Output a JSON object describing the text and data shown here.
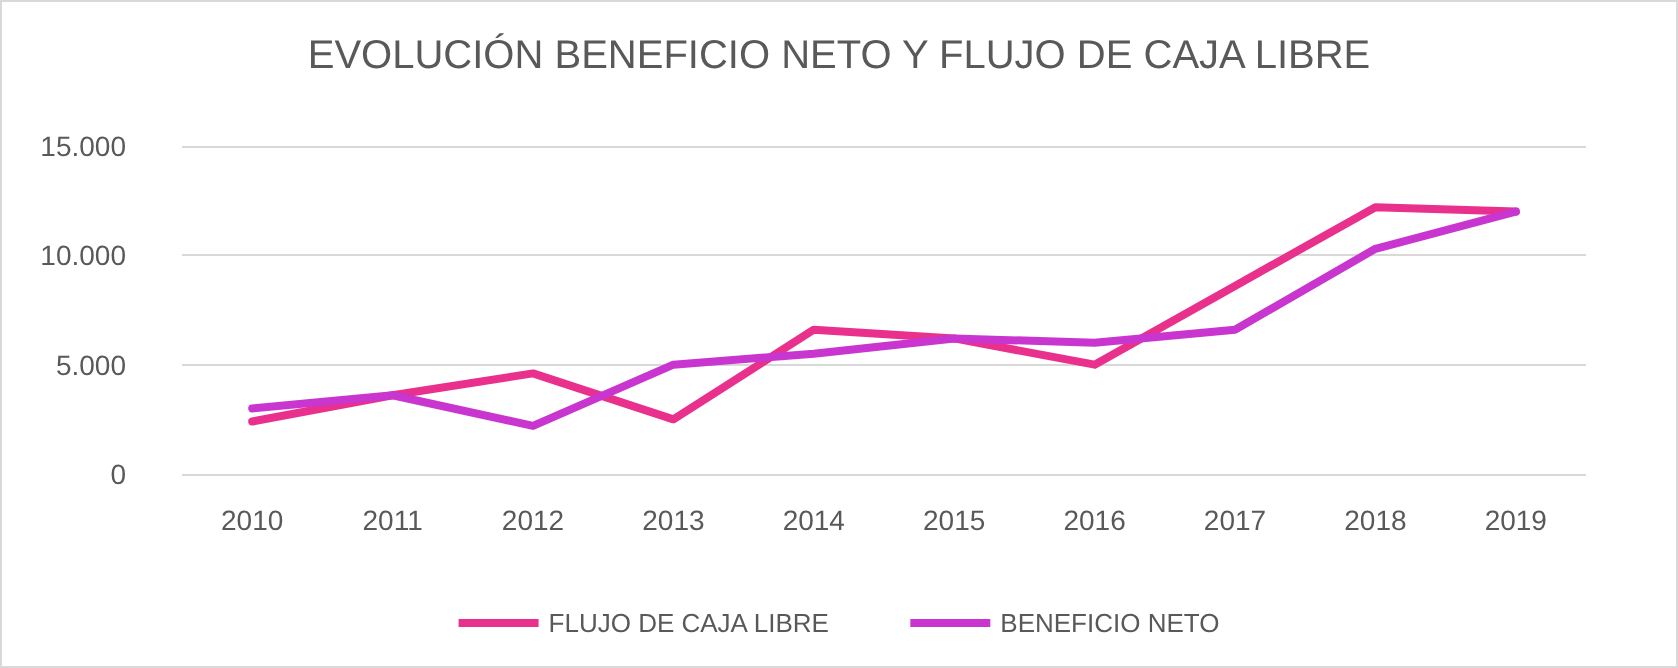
{
  "chart_data": {
    "type": "line",
    "title": "EVOLUCIÓN BENEFICIO NETO Y FLUJO DE CAJA LIBRE",
    "categories": [
      "2010",
      "2011",
      "2012",
      "2013",
      "2014",
      "2015",
      "2016",
      "2017",
      "2018",
      "2019"
    ],
    "series": [
      {
        "name": "FLUJO DE CAJA LIBRE",
        "color": "#e8308c",
        "values": [
          2400,
          3600,
          4600,
          2500,
          6600,
          6200,
          5000,
          8600,
          12200,
          12000
        ]
      },
      {
        "name": "BENEFICIO NETO",
        "color": "#c935cf",
        "values": [
          3000,
          3600,
          2200,
          5000,
          5500,
          6200,
          6000,
          6600,
          10300,
          12000
        ]
      }
    ],
    "ylim": [
      0,
      15000
    ],
    "yticks": [
      {
        "value": 0,
        "label": "0"
      },
      {
        "value": 5000,
        "label": "5.000"
      },
      {
        "value": 10000,
        "label": "10.000"
      },
      {
        "value": 15000,
        "label": "15.000"
      }
    ],
    "grid": "y",
    "legend": "bottom",
    "marker": "none",
    "line_style": "solid"
  }
}
